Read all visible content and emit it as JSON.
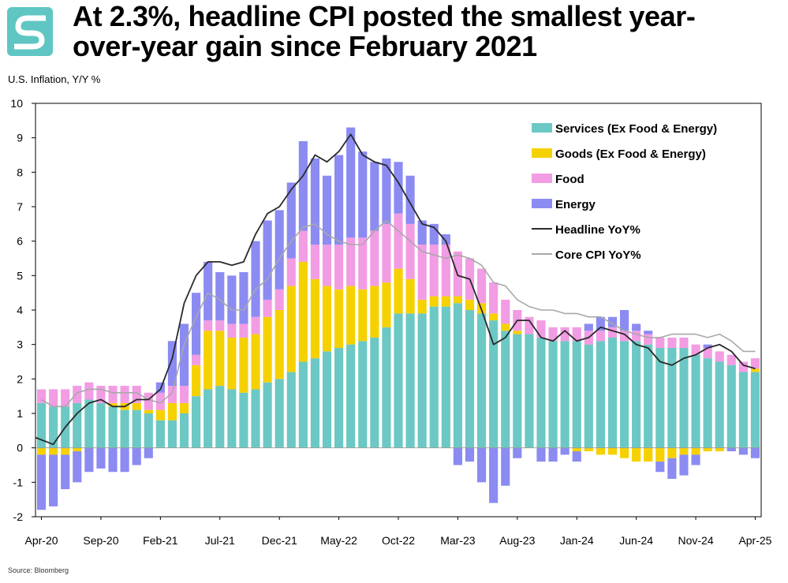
{
  "header": {
    "title_line1": "At 2.3%, headline CPI posted the smallest year-",
    "title_line2": "over-year gain since February 2021",
    "subtitle": "U.S. Inflation, Y/Y %",
    "source": "Source: Bloomberg",
    "logo_icon": "s-swoosh-logo-icon"
  },
  "colors": {
    "services": "#6cc8c4",
    "goods": "#f6d100",
    "food": "#f29ce4",
    "energy": "#8b8bf2",
    "headline": "#2a2a2a",
    "core": "#a8a8a8",
    "logo": "#5fc6c3"
  },
  "chart_data": {
    "type": "bar",
    "stacked": true,
    "title": "At 2.3%, headline CPI posted the smallest year-over-year gain since February 2021",
    "ylabel": "U.S. Inflation, Y/Y %",
    "xlabel": "",
    "ylim": [
      -2,
      10
    ],
    "yticks": [
      -2,
      -1,
      0,
      1,
      2,
      3,
      4,
      5,
      6,
      7,
      8,
      9,
      10
    ],
    "legend_position": "top-right",
    "categories": [
      "Apr-20",
      "May-20",
      "Jun-20",
      "Jul-20",
      "Aug-20",
      "Sep-20",
      "Oct-20",
      "Nov-20",
      "Dec-20",
      "Jan-21",
      "Feb-21",
      "Mar-21",
      "Apr-21",
      "May-21",
      "Jun-21",
      "Jul-21",
      "Aug-21",
      "Sep-21",
      "Oct-21",
      "Nov-21",
      "Dec-21",
      "Jan-22",
      "Feb-22",
      "Mar-22",
      "Apr-22",
      "May-22",
      "Jun-22",
      "Jul-22",
      "Aug-22",
      "Sep-22",
      "Oct-22",
      "Nov-22",
      "Dec-22",
      "Jan-23",
      "Feb-23",
      "Mar-23",
      "Apr-23",
      "May-23",
      "Jun-23",
      "Jul-23",
      "Aug-23",
      "Sep-23",
      "Oct-23",
      "Nov-23",
      "Dec-23",
      "Jan-24",
      "Feb-24",
      "Mar-24",
      "Apr-24",
      "May-24",
      "Jun-24",
      "Jul-24",
      "Aug-24",
      "Sep-24",
      "Oct-24",
      "Nov-24",
      "Dec-24",
      "Jan-25",
      "Feb-25",
      "Mar-25",
      "Apr-25"
    ],
    "x_tick_labels": [
      "Apr-20",
      "Sep-20",
      "Feb-21",
      "Jul-21",
      "Dec-21",
      "May-22",
      "Oct-22",
      "Mar-23",
      "Aug-23",
      "Jan-24",
      "Jun-24",
      "Nov-24",
      "Apr-25"
    ],
    "series": [
      {
        "name": "Services (Ex Food & Energy)",
        "kind": "bar",
        "values": [
          1.3,
          1.2,
          1.2,
          1.3,
          1.4,
          1.3,
          1.2,
          1.1,
          1.1,
          1.0,
          0.8,
          0.8,
          1.0,
          1.5,
          1.7,
          1.8,
          1.7,
          1.6,
          1.7,
          1.9,
          2.0,
          2.2,
          2.5,
          2.6,
          2.8,
          2.9,
          3.0,
          3.1,
          3.2,
          3.5,
          3.9,
          3.9,
          3.9,
          4.1,
          4.1,
          4.2,
          4.0,
          3.9,
          3.7,
          3.4,
          3.3,
          3.3,
          3.2,
          3.1,
          3.1,
          3.1,
          3.0,
          3.1,
          3.2,
          3.1,
          3.1,
          3.0,
          2.9,
          2.9,
          2.9,
          2.7,
          2.6,
          2.5,
          2.4,
          2.2,
          2.2
        ]
      },
      {
        "name": "Goods (Ex Food & Energy)",
        "kind": "bar",
        "values": [
          -0.2,
          -0.2,
          -0.2,
          -0.1,
          0.0,
          0.0,
          0.1,
          0.2,
          0.2,
          0.1,
          0.3,
          0.5,
          0.3,
          0.9,
          1.7,
          1.6,
          1.5,
          1.6,
          1.6,
          1.9,
          2.0,
          2.5,
          2.9,
          2.3,
          1.9,
          1.7,
          1.7,
          1.5,
          1.5,
          1.3,
          1.3,
          1.0,
          0.4,
          0.3,
          0.3,
          0.2,
          0.3,
          0.3,
          0.2,
          0.2,
          0.1,
          0.0,
          0.0,
          0.0,
          0.0,
          -0.1,
          -0.1,
          -0.2,
          -0.2,
          -0.3,
          -0.4,
          -0.4,
          -0.4,
          -0.3,
          -0.2,
          -0.2,
          -0.1,
          -0.1,
          0.0,
          0.0,
          0.1
        ]
      },
      {
        "name": "Food",
        "kind": "bar",
        "values": [
          0.4,
          0.5,
          0.5,
          0.5,
          0.5,
          0.5,
          0.5,
          0.5,
          0.5,
          0.5,
          0.5,
          0.5,
          0.5,
          0.3,
          0.3,
          0.3,
          0.4,
          0.4,
          0.5,
          0.5,
          0.6,
          0.8,
          0.9,
          1.0,
          1.2,
          1.3,
          1.4,
          1.5,
          1.6,
          1.7,
          1.6,
          1.6,
          1.6,
          1.5,
          1.5,
          1.3,
          1.2,
          1.0,
          0.9,
          0.7,
          0.6,
          0.5,
          0.5,
          0.4,
          0.4,
          0.4,
          0.4,
          0.3,
          0.3,
          0.3,
          0.3,
          0.3,
          0.3,
          0.3,
          0.3,
          0.3,
          0.3,
          0.3,
          0.3,
          0.3,
          0.3
        ]
      },
      {
        "name": "Energy",
        "kind": "bar",
        "values": [
          -1.6,
          -1.5,
          -1.0,
          -0.9,
          -0.7,
          -0.6,
          -0.7,
          -0.7,
          -0.5,
          -0.3,
          0.3,
          1.3,
          1.8,
          1.8,
          1.7,
          1.4,
          1.4,
          1.5,
          2.2,
          2.3,
          2.3,
          2.2,
          2.6,
          2.5,
          2.0,
          2.6,
          3.2,
          2.5,
          2.0,
          1.9,
          1.5,
          1.4,
          0.7,
          0.6,
          0.3,
          -0.5,
          -0.4,
          -1.0,
          -1.6,
          -1.1,
          -0.3,
          0.0,
          -0.4,
          -0.4,
          -0.2,
          -0.3,
          0.2,
          0.4,
          0.3,
          0.6,
          0.2,
          0.1,
          -0.3,
          -0.6,
          -0.6,
          -0.3,
          0.1,
          0.0,
          -0.1,
          -0.2,
          -0.3
        ]
      },
      {
        "name": "Headline YoY%",
        "kind": "line",
        "values": [
          0.3,
          0.1,
          0.6,
          1.0,
          1.3,
          1.4,
          1.2,
          1.2,
          1.4,
          1.4,
          1.7,
          2.6,
          4.2,
          5.0,
          5.4,
          5.4,
          5.3,
          5.4,
          6.2,
          6.8,
          7.0,
          7.5,
          7.9,
          8.5,
          8.3,
          8.6,
          9.1,
          8.5,
          8.3,
          8.2,
          7.7,
          7.1,
          6.5,
          6.4,
          6.0,
          5.0,
          4.9,
          4.0,
          3.0,
          3.2,
          3.7,
          3.7,
          3.2,
          3.1,
          3.4,
          3.1,
          3.2,
          3.5,
          3.4,
          3.3,
          3.0,
          2.9,
          2.5,
          2.4,
          2.6,
          2.7,
          2.9,
          3.0,
          2.8,
          2.4,
          2.3
        ]
      },
      {
        "name": "Core CPI YoY%",
        "kind": "line",
        "values": [
          1.4,
          1.2,
          1.2,
          1.6,
          1.7,
          1.7,
          1.6,
          1.6,
          1.6,
          1.4,
          1.3,
          1.6,
          3.0,
          3.8,
          4.5,
          4.3,
          4.0,
          4.0,
          4.6,
          4.9,
          5.5,
          6.0,
          6.4,
          6.5,
          6.2,
          6.0,
          5.9,
          5.9,
          6.3,
          6.6,
          6.3,
          6.0,
          5.7,
          5.6,
          5.5,
          5.6,
          5.5,
          5.3,
          4.8,
          4.7,
          4.3,
          4.1,
          4.0,
          4.0,
          3.9,
          3.9,
          3.8,
          3.8,
          3.6,
          3.4,
          3.3,
          3.2,
          3.2,
          3.3,
          3.3,
          3.3,
          3.2,
          3.3,
          3.1,
          2.8,
          2.8
        ]
      }
    ]
  }
}
